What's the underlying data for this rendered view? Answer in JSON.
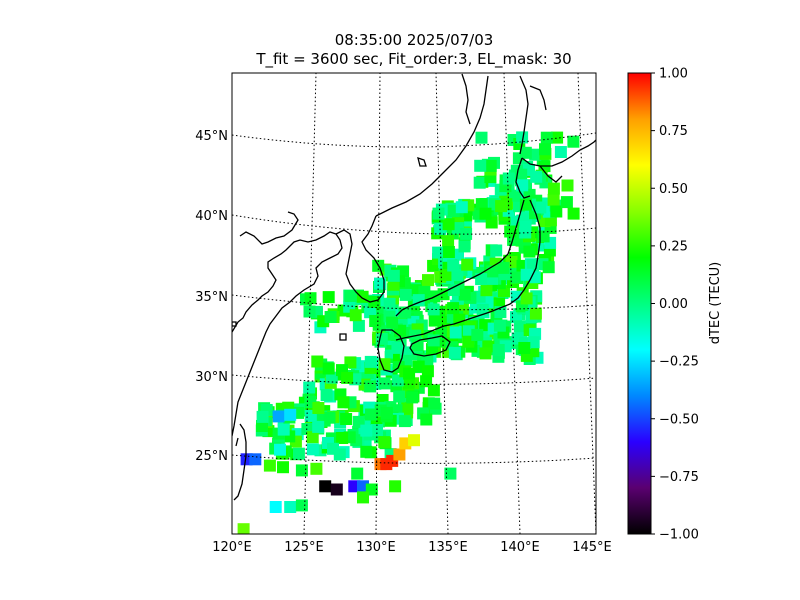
{
  "title_line1": "08:35:00 2025/07/03",
  "title_line2": "T_fit = 3600 sec, Fit_order:3, EL_mask: 30",
  "colorbar": {
    "label": "dTEC (TECU)",
    "range": [
      -1.0,
      1.0
    ],
    "ticks": [
      "1.00",
      "0.75",
      "0.50",
      "0.25",
      "0.00",
      "−0.25",
      "−0.50",
      "−0.75",
      "−1.00"
    ],
    "colormap": [
      "#000000",
      "#5a0070",
      "#2a00ff",
      "#0088ff",
      "#00ffff",
      "#00ff80",
      "#00ff00",
      "#88ff00",
      "#ffff00",
      "#ffa000",
      "#ff0000"
    ]
  },
  "map": {
    "lat_labels": [
      "45°N",
      "40°N",
      "35°N",
      "30°N",
      "25°N"
    ],
    "lon_labels": [
      "120°E",
      "125°E",
      "130°E",
      "135°E",
      "140°E",
      "145°E"
    ],
    "lat_range": [
      20,
      49
    ],
    "lon_range": [
      120,
      145
    ]
  },
  "chart_data": {
    "type": "heatmap",
    "title": "08:35:00 2025/07/03",
    "subtitle": "T_fit = 3600 sec, Fit_order:3, EL_mask: 30",
    "colorbar_label": "dTEC (TECU)",
    "value_range": [
      -1.0,
      1.0
    ],
    "lon_ticks": [
      120,
      125,
      130,
      135,
      140,
      145
    ],
    "lat_ticks": [
      25,
      30,
      35,
      40,
      45
    ],
    "points": [
      {
        "lon": 121.0,
        "lat": 24.7,
        "v": -0.55
      },
      {
        "lon": 121.6,
        "lat": 24.7,
        "v": -0.45
      },
      {
        "lon": 123.2,
        "lat": 27.4,
        "v": -0.35
      },
      {
        "lon": 124.0,
        "lat": 27.5,
        "v": -0.25
      },
      {
        "lon": 122.6,
        "lat": 24.3,
        "v": 0.28
      },
      {
        "lon": 123.5,
        "lat": 24.2,
        "v": 0.22
      },
      {
        "lon": 124.8,
        "lat": 24.0,
        "v": 0.12
      },
      {
        "lon": 125.8,
        "lat": 24.1,
        "v": 0.3
      },
      {
        "lon": 126.4,
        "lat": 23.0,
        "v": -1.0
      },
      {
        "lon": 127.2,
        "lat": 22.8,
        "v": -0.95
      },
      {
        "lon": 128.4,
        "lat": 23.0,
        "v": -0.6
      },
      {
        "lon": 129.0,
        "lat": 23.0,
        "v": -0.45
      },
      {
        "lon": 128.6,
        "lat": 23.8,
        "v": 0.12
      },
      {
        "lon": 129.6,
        "lat": 22.8,
        "v": 0.15
      },
      {
        "lon": 130.2,
        "lat": 24.4,
        "v": 0.85
      },
      {
        "lon": 130.6,
        "lat": 24.4,
        "v": 0.95
      },
      {
        "lon": 131.0,
        "lat": 24.6,
        "v": 0.95
      },
      {
        "lon": 131.5,
        "lat": 25.0,
        "v": 0.8
      },
      {
        "lon": 131.9,
        "lat": 25.7,
        "v": 0.7
      },
      {
        "lon": 132.5,
        "lat": 25.9,
        "v": 0.55
      },
      {
        "lon": 131.2,
        "lat": 23.0,
        "v": 0.25
      },
      {
        "lon": 135.0,
        "lat": 23.8,
        "v": 0.05
      },
      {
        "lon": 123.0,
        "lat": 21.7,
        "v": -0.2
      },
      {
        "lon": 124.0,
        "lat": 21.7,
        "v": -0.1
      },
      {
        "lon": 124.8,
        "lat": 21.8,
        "v": 0.08
      },
      {
        "lon": 120.8,
        "lat": 20.3,
        "v": 0.35
      },
      {
        "lon": 123.3,
        "lat": 25.3,
        "v": -0.15
      },
      {
        "lon": 129.0,
        "lat": 22.3,
        "v": 0.25
      }
    ]
  }
}
